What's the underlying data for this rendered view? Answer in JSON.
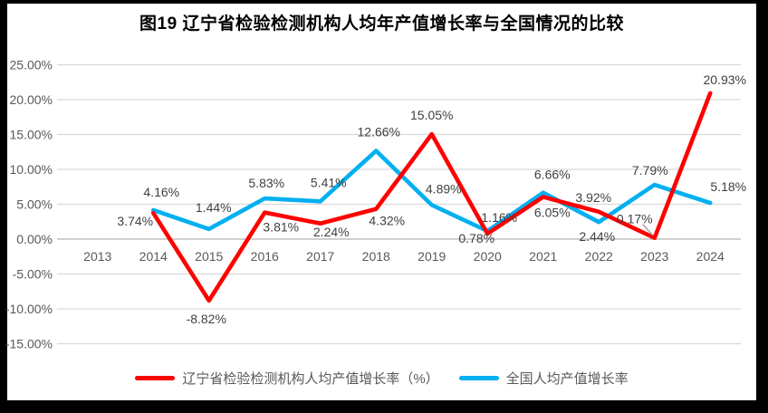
{
  "colors": {
    "frame": "#000000",
    "paper": "#ffffff",
    "gridline": "#d9d9d9",
    "axis_line": "#bfbfbf",
    "tick_text": "#595959",
    "label_text": "#404040",
    "leader_line": "#a6a6a6",
    "series_red": "#ff0000",
    "series_blue": "#00b0f0"
  },
  "chart_data": {
    "type": "line",
    "title": "图19 辽宁省检验检测机构人均年产值增长率与全国情况的比较",
    "categories": [
      "2013",
      "2014",
      "2015",
      "2016",
      "2017",
      "2018",
      "2019",
      "2020",
      "2021",
      "2022",
      "2023",
      "2024"
    ],
    "y_axis": {
      "min": -15,
      "max": 25,
      "step": 5,
      "tick_format": "0.00%",
      "ylim": [
        -15,
        25
      ]
    },
    "xlabel": "",
    "ylabel": "",
    "grid": true,
    "legend_position": "bottom",
    "series": [
      {
        "name": "辽宁省检验检测机构人均产值增长率（%）",
        "color": "#ff0000",
        "values": [
          null,
          3.74,
          -8.82,
          3.81,
          2.24,
          4.32,
          15.05,
          0.78,
          6.05,
          3.92,
          0.17,
          20.93
        ],
        "label_offsets": [
          null,
          [
            -20,
            9
          ],
          [
            -3,
            20
          ],
          [
            18,
            16
          ],
          [
            12,
            9
          ],
          [
            12,
            13
          ],
          [
            0,
            -21
          ],
          [
            -12,
            5
          ],
          [
            10,
            17
          ],
          [
            -6,
            -16
          ],
          [
            -22,
            -21
          ],
          [
            16,
            -15
          ]
        ]
      },
      {
        "name": "全国人均产值增长率",
        "color": "#00b0f0",
        "values": [
          null,
          4.16,
          1.44,
          5.83,
          5.41,
          12.66,
          4.89,
          1.16,
          6.66,
          2.44,
          7.79,
          5.18
        ],
        "label_offsets": [
          null,
          [
            9,
            -20
          ],
          [
            5,
            -24
          ],
          [
            2,
            -17
          ],
          [
            9,
            -21
          ],
          [
            3,
            -21
          ],
          [
            13,
            -18
          ],
          [
            13,
            -15
          ],
          [
            10,
            -20
          ],
          [
            -2,
            16
          ],
          [
            -5,
            -16
          ],
          [
            20,
            -18
          ]
        ]
      }
    ],
    "annotations": [
      {
        "type": "leader-line",
        "series": 0,
        "category": "2023"
      }
    ]
  }
}
